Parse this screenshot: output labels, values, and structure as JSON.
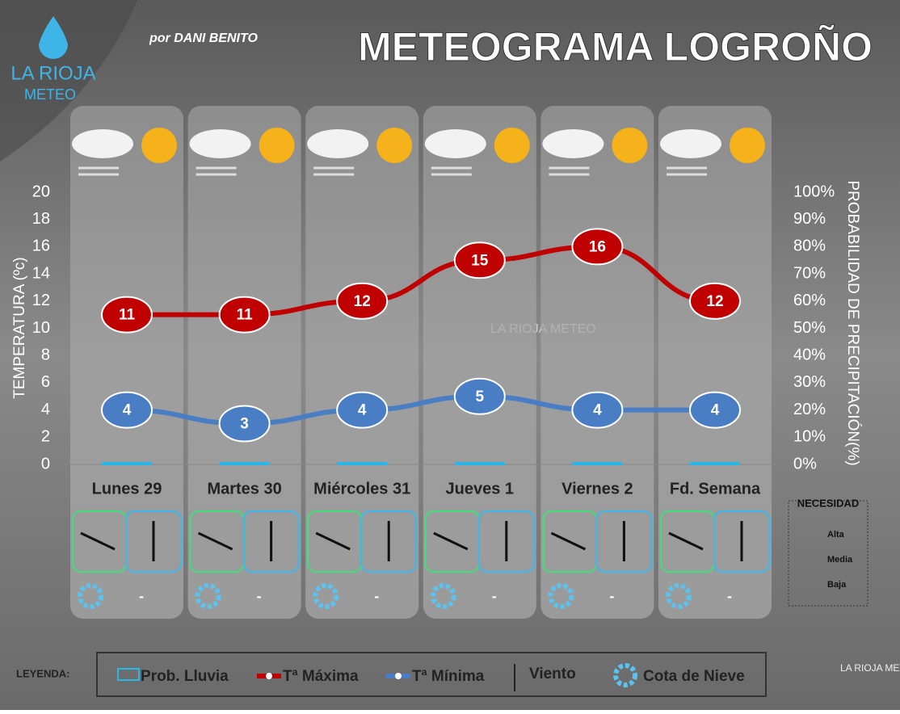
{
  "logo": {
    "name": "LA RIOJA",
    "sub": "METEO"
  },
  "byline": "por DANI BENITO",
  "watermark": "LA RIOJA METEO",
  "snow_level": [
    "-",
    "-",
    "-",
    "-",
    "-",
    "-"
  ],
  "legend": {
    "label": "LEYENDA:",
    "wind": "Viento",
    "snow": "Cota de Nieve"
  },
  "necessity": {
    "title": "NECESIDAD",
    "items": [
      "Alta",
      "Media",
      "Baja"
    ]
  },
  "chart_data": {
    "type": "line",
    "title": "METEOGRAMA LOGROÑO",
    "ylabel": "TEMPERATURA (ºc)",
    "y2label": "PROBABILIDAD DE PRECIPITACIÓN(%)",
    "categories": [
      "Lunes 29",
      "Martes 30",
      "Miércoles 31",
      "Jueves 1",
      "Viernes 2",
      "Fd. Semana"
    ],
    "series": [
      {
        "name": "Prob. Lluvia",
        "type": "bar",
        "axis": "y2",
        "color": "#29b6e8",
        "values": [
          0,
          0,
          0,
          0,
          0,
          0
        ]
      },
      {
        "name": "Tª Máxima",
        "color": "#c00000",
        "values": [
          11,
          11,
          12,
          15,
          16,
          12
        ]
      },
      {
        "name": "Tª Mínima",
        "color": "#4a7ec4",
        "values": [
          4,
          3,
          4,
          5,
          4,
          4
        ]
      }
    ],
    "ylim": [
      0,
      20
    ],
    "yticks": [
      0,
      2,
      4,
      6,
      8,
      10,
      12,
      14,
      16,
      18,
      20
    ],
    "y2lim": [
      0,
      100
    ],
    "y2ticks": [
      {
        "value": 0,
        "label": "0%"
      },
      {
        "value": 10,
        "label": "10%"
      },
      {
        "value": 20,
        "label": "20%"
      },
      {
        "value": 30,
        "label": "30%"
      },
      {
        "value": 40,
        "label": "40%"
      },
      {
        "value": 50,
        "label": "50%"
      },
      {
        "value": 60,
        "label": "60%"
      },
      {
        "value": 70,
        "label": "70%"
      },
      {
        "value": 80,
        "label": "80%"
      },
      {
        "value": 90,
        "label": "90%"
      },
      {
        "value": 100,
        "label": "100%"
      }
    ]
  }
}
